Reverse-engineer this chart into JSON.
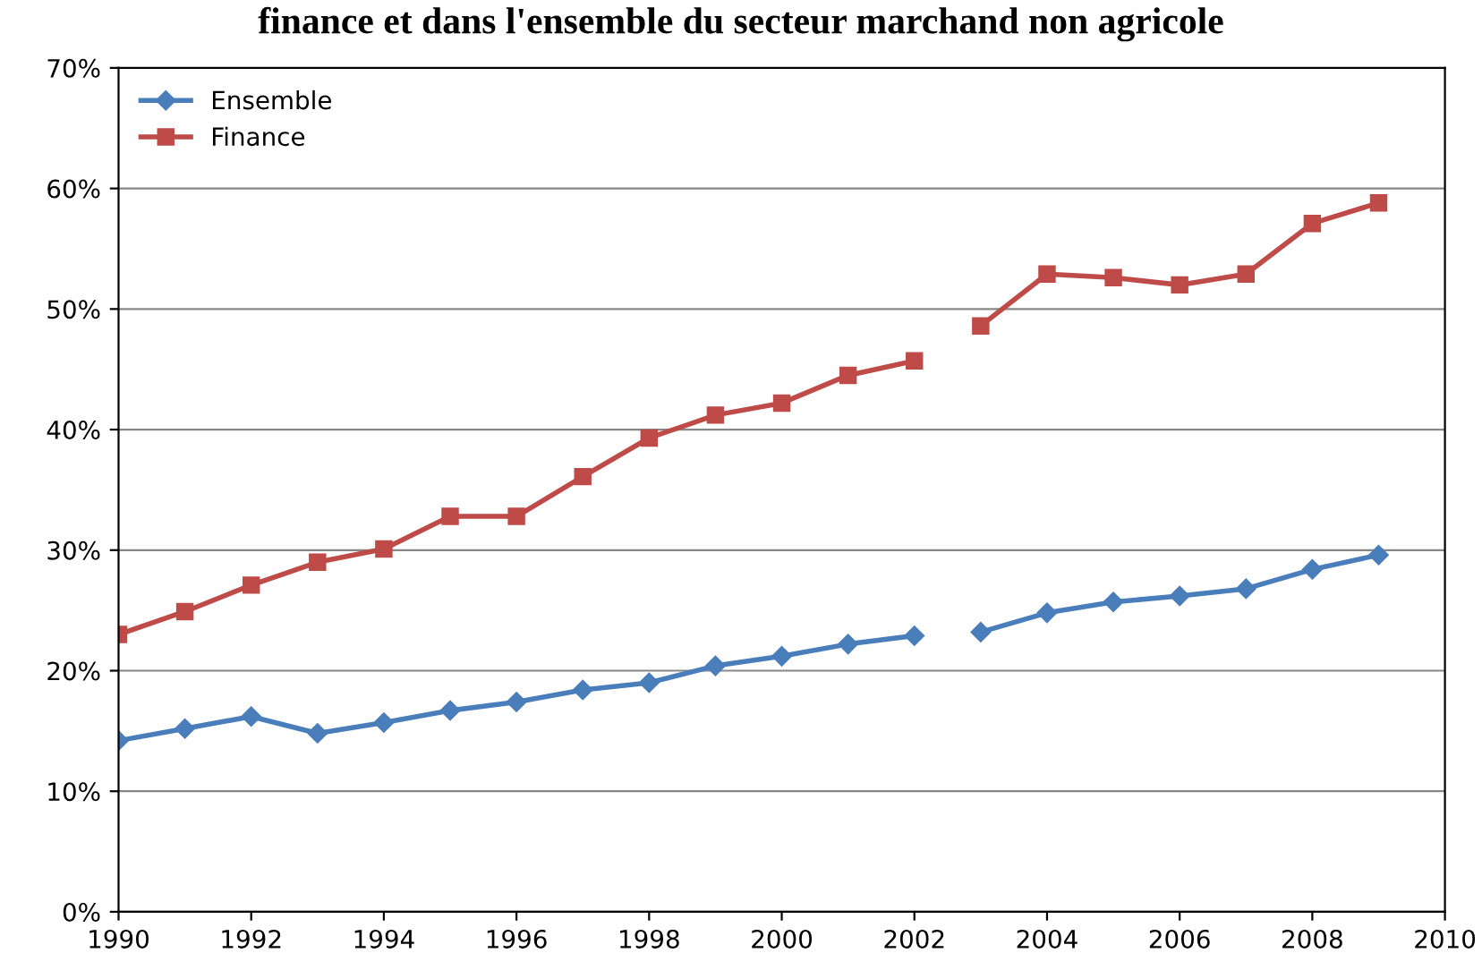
{
  "chart_data": {
    "type": "line",
    "title": "finance et dans l'ensemble du secteur marchand non agricole",
    "x": [
      1990,
      1991,
      1992,
      1993,
      1994,
      1995,
      1996,
      1997,
      1998,
      1999,
      2000,
      2001,
      2002,
      2002.5,
      2003,
      2004,
      2005,
      2006,
      2007,
      2008,
      2009
    ],
    "series": [
      {
        "name": "Ensemble",
        "color": "#4a7ebb",
        "marker": "diamond",
        "values": [
          14.2,
          15.2,
          16.2,
          14.8,
          15.7,
          16.7,
          17.4,
          18.4,
          19.0,
          20.4,
          21.2,
          22.2,
          22.9,
          null,
          23.2,
          24.8,
          25.7,
          26.2,
          26.8,
          28.4,
          29.6
        ]
      },
      {
        "name": "Finance",
        "color": "#be4b48",
        "marker": "square",
        "values": [
          23.0,
          24.9,
          27.1,
          29.0,
          30.1,
          32.8,
          32.8,
          36.1,
          39.3,
          41.2,
          42.2,
          44.5,
          45.7,
          null,
          48.6,
          52.9,
          52.6,
          52.0,
          52.9,
          57.1,
          58.8
        ]
      }
    ],
    "xlim": [
      1990,
      2010
    ],
    "xticks": [
      1990,
      1992,
      1994,
      1996,
      1998,
      2000,
      2002,
      2004,
      2006,
      2008,
      2010
    ],
    "ylim": [
      0,
      70
    ],
    "yticks": [
      {
        "value": 0,
        "label": "0%"
      },
      {
        "value": 10,
        "label": "10%"
      },
      {
        "value": 20,
        "label": "20%"
      },
      {
        "value": 30,
        "label": "30%"
      },
      {
        "value": 40,
        "label": "40%"
      },
      {
        "value": 50,
        "label": "50%"
      },
      {
        "value": 60,
        "label": "60%"
      },
      {
        "value": 70,
        "label": "70%"
      }
    ],
    "grid": "y",
    "legend": "top left"
  }
}
